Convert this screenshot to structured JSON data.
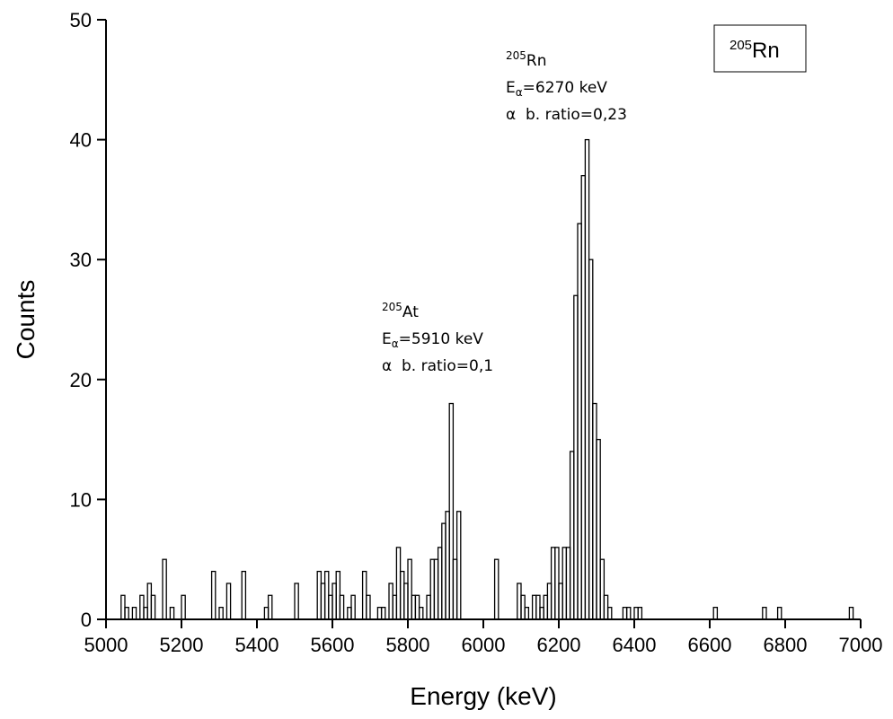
{
  "chart_data": {
    "type": "histogram",
    "xlabel": "Energy (keV)",
    "ylabel": "Counts",
    "bins": [
      5000,
      5010,
      5020,
      5030,
      5040,
      5050,
      5060,
      5070,
      5080,
      5090,
      5100,
      5110,
      5120,
      5130,
      5140,
      5150,
      5160,
      5170,
      5180,
      5190,
      5200,
      5210,
      5220,
      5230,
      5240,
      5250,
      5260,
      5270,
      5280,
      5290,
      5300,
      5310,
      5320,
      5330,
      5340,
      5350,
      5360,
      5370,
      5380,
      5390,
      5400,
      5410,
      5420,
      5430,
      5440,
      5450,
      5460,
      5470,
      5480,
      5490,
      5500,
      5510,
      5520,
      5530,
      5540,
      5550,
      5560,
      5570,
      5580,
      5590,
      5600,
      5610,
      5620,
      5630,
      5640,
      5650,
      5660,
      5670,
      5680,
      5690,
      5700,
      5710,
      5720,
      5730,
      5740,
      5750,
      5760,
      5770,
      5780,
      5790,
      5800,
      5810,
      5820,
      5830,
      5840,
      5850,
      5860,
      5870,
      5880,
      5890,
      5900,
      5910,
      5920,
      5930,
      5940,
      5950,
      5960,
      5970,
      5980,
      5990,
      6000,
      6010,
      6020,
      6030,
      6040,
      6050,
      6060,
      6070,
      6080,
      6090,
      6100,
      6110,
      6120,
      6130,
      6140,
      6150,
      6160,
      6170,
      6180,
      6190,
      6200,
      6210,
      6220,
      6230,
      6240,
      6250,
      6260,
      6270,
      6280,
      6290,
      6300,
      6310,
      6320,
      6330,
      6340,
      6350,
      6360,
      6370,
      6380,
      6390,
      6400,
      6410,
      6420,
      6430,
      6440,
      6450,
      6460,
      6470,
      6480,
      6490,
      6500,
      6510,
      6520,
      6530,
      6540,
      6550,
      6560,
      6570,
      6580,
      6590,
      6600,
      6610,
      6620,
      6630,
      6640,
      6650,
      6660,
      6670,
      6680,
      6690,
      6700,
      6710,
      6720,
      6730,
      6740,
      6750,
      6760,
      6770,
      6780,
      6790,
      6800,
      6810,
      6820,
      6830,
      6840,
      6850,
      6860,
      6870,
      6880,
      6890,
      6900,
      6910,
      6920,
      6930,
      6940,
      6950,
      6960,
      6970,
      6980,
      6990,
      7000
    ],
    "values": [
      0,
      0,
      0,
      0,
      2,
      1,
      0,
      1,
      0,
      2,
      1,
      3,
      2,
      0,
      0,
      5,
      0,
      1,
      0,
      0,
      2,
      0,
      0,
      0,
      0,
      0,
      0,
      0,
      4,
      0,
      1,
      0,
      3,
      0,
      0,
      0,
      4,
      0,
      0,
      0,
      0,
      0,
      1,
      2,
      0,
      0,
      0,
      0,
      0,
      0,
      3,
      0,
      0,
      0,
      0,
      0,
      4,
      3,
      4,
      2,
      3,
      4,
      2,
      0,
      1,
      2,
      0,
      0,
      4,
      2,
      0,
      0,
      1,
      1,
      0,
      3,
      2,
      6,
      4,
      3,
      5,
      2,
      2,
      1,
      0,
      2,
      5,
      5,
      6,
      8,
      9,
      18,
      5,
      9,
      0,
      0,
      0,
      0,
      0,
      0,
      0,
      0,
      0,
      5,
      0,
      0,
      0,
      0,
      0,
      3,
      2,
      1,
      0,
      2,
      2,
      1,
      2,
      3,
      6,
      6,
      3,
      6,
      6,
      14,
      27,
      33,
      37,
      40,
      30,
      18,
      15,
      5,
      2,
      1,
      0,
      0,
      0,
      1,
      1,
      0,
      1,
      1,
      0,
      0,
      0,
      0,
      0,
      0,
      0,
      0,
      0,
      0,
      0,
      0,
      0,
      0,
      0,
      0,
      0,
      0,
      0,
      1,
      0,
      0,
      0,
      0,
      0,
      0,
      0,
      0,
      0,
      0,
      0,
      0,
      1,
      0,
      0,
      0,
      1,
      0,
      0,
      0,
      0,
      0,
      0,
      0,
      0,
      0,
      0,
      0,
      0,
      0,
      0,
      0,
      0,
      0,
      0,
      1,
      0,
      0
    ],
    "color": "#000000",
    "xlim": [
      5000,
      7000
    ],
    "xticks": [
      5000,
      5200,
      5400,
      5600,
      5800,
      6000,
      6200,
      6400,
      6600,
      6800,
      7000
    ],
    "ylim": [
      0,
      50
    ],
    "yticks": [
      0,
      10,
      20,
      30,
      40,
      50
    ],
    "legend": {
      "mass": "205",
      "symbol": "Rn"
    },
    "annotations": [
      {
        "mass": "205",
        "symbol": "Rn",
        "e": "E",
        "sub": "α",
        "energy": "=6270 keV",
        "ratio": "α  b. ratio=0,23"
      },
      {
        "mass": "205",
        "symbol": "At",
        "e": "E",
        "sub": "α",
        "energy": "=5910 keV",
        "ratio": "α  b. ratio=0,1"
      }
    ]
  }
}
